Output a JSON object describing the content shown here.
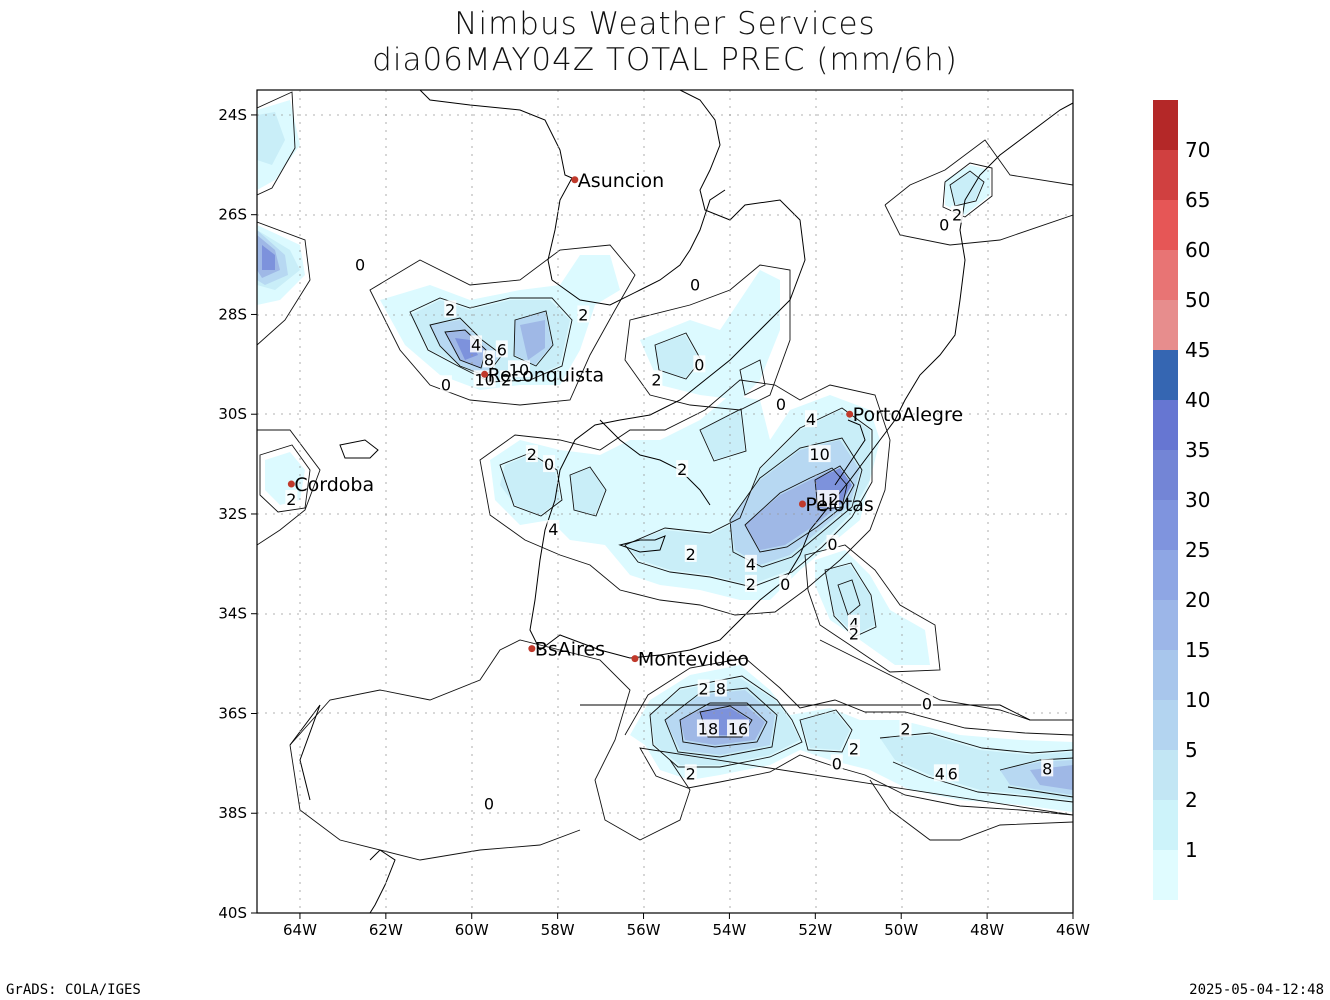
{
  "title": {
    "line1": "Nimbus Weather Services",
    "line2": "dia06MAY04Z TOTAL PREC (mm/6h)"
  },
  "footer": {
    "left": "GrADS: COLA/IGES",
    "right": "2025-05-04-12:48"
  },
  "map": {
    "lon_range": [
      -65,
      -46
    ],
    "lat_range": [
      -40,
      -23.5
    ],
    "lat_ticks": [
      "24S",
      "26S",
      "28S",
      "30S",
      "32S",
      "34S",
      "36S",
      "38S",
      "40S"
    ],
    "lon_ticks": [
      "64W",
      "62W",
      "60W",
      "58W",
      "56W",
      "54W",
      "52W",
      "50W",
      "48W",
      "46W"
    ],
    "grid": "dotted"
  },
  "cities": [
    {
      "name": "Asuncion",
      "lon": -57.6,
      "lat": -25.3
    },
    {
      "name": "Reconquista",
      "lon": -59.7,
      "lat": -29.2
    },
    {
      "name": "PortoAlegre",
      "lon": -51.2,
      "lat": -30.0
    },
    {
      "name": "Cordoba",
      "lon": -64.2,
      "lat": -31.4
    },
    {
      "name": "Pelotas",
      "lon": -52.3,
      "lat": -31.8
    },
    {
      "name": "BsAires",
      "lon": -58.6,
      "lat": -34.7
    },
    {
      "name": "Montevideo",
      "lon": -56.2,
      "lat": -34.9
    }
  ],
  "contour_labels": [
    {
      "text": "0",
      "lon": -62.6,
      "lat": -27.0
    },
    {
      "text": "2",
      "lon": -60.5,
      "lat": -27.9
    },
    {
      "text": "4",
      "lon": -59.9,
      "lat": -28.6
    },
    {
      "text": "8",
      "lon": -59.6,
      "lat": -28.9
    },
    {
      "text": "6",
      "lon": -59.3,
      "lat": -28.7
    },
    {
      "text": "10",
      "lon": -59.7,
      "lat": -29.3
    },
    {
      "text": "0",
      "lon": -60.6,
      "lat": -29.4
    },
    {
      "text": "10",
      "lon": -58.9,
      "lat": -29.1
    },
    {
      "text": "2",
      "lon": -59.2,
      "lat": -29.3
    },
    {
      "text": "2",
      "lon": -57.4,
      "lat": -28.0
    },
    {
      "text": "0",
      "lon": -54.8,
      "lat": -27.4
    },
    {
      "text": "2",
      "lon": -55.7,
      "lat": -29.3
    },
    {
      "text": "0",
      "lon": -54.7,
      "lat": -29.0
    },
    {
      "text": "0",
      "lon": -52.8,
      "lat": -29.8
    },
    {
      "text": "4",
      "lon": -52.1,
      "lat": -30.1
    },
    {
      "text": "10",
      "lon": -51.9,
      "lat": -30.8
    },
    {
      "text": "12",
      "lon": -51.7,
      "lat": -31.7
    },
    {
      "text": "2",
      "lon": -58.6,
      "lat": -30.8
    },
    {
      "text": "0",
      "lon": -58.2,
      "lat": -31.0
    },
    {
      "text": "2",
      "lon": -55.1,
      "lat": -31.1
    },
    {
      "text": "4",
      "lon": -58.1,
      "lat": -32.3
    },
    {
      "text": "2",
      "lon": -64.2,
      "lat": -31.7
    },
    {
      "text": "2",
      "lon": -54.9,
      "lat": -32.8
    },
    {
      "text": "4",
      "lon": -53.5,
      "lat": -33.0
    },
    {
      "text": "2",
      "lon": -53.5,
      "lat": -33.4
    },
    {
      "text": "0",
      "lon": -52.7,
      "lat": -33.4
    },
    {
      "text": "0",
      "lon": -51.6,
      "lat": -32.6
    },
    {
      "text": "4",
      "lon": -51.1,
      "lat": -34.2
    },
    {
      "text": "2",
      "lon": -51.1,
      "lat": -34.4
    },
    {
      "text": "0",
      "lon": -49.4,
      "lat": -35.8
    },
    {
      "text": "2",
      "lon": -54.6,
      "lat": -35.5
    },
    {
      "text": "8",
      "lon": -54.2,
      "lat": -35.5
    },
    {
      "text": "18",
      "lon": -54.5,
      "lat": -36.3
    },
    {
      "text": "16",
      "lon": -53.8,
      "lat": -36.3
    },
    {
      "text": "2",
      "lon": -54.9,
      "lat": -37.2
    },
    {
      "text": "2",
      "lon": -51.1,
      "lat": -36.7
    },
    {
      "text": "0",
      "lon": -51.5,
      "lat": -37.0
    },
    {
      "text": "2",
      "lon": -49.9,
      "lat": -36.3
    },
    {
      "text": "4",
      "lon": -49.1,
      "lat": -37.2
    },
    {
      "text": "6",
      "lon": -48.8,
      "lat": -37.2
    },
    {
      "text": "8",
      "lon": -46.6,
      "lat": -37.1
    },
    {
      "text": "0",
      "lon": -59.6,
      "lat": -37.8
    },
    {
      "text": "0",
      "lon": -49.0,
      "lat": -26.2
    },
    {
      "text": "2",
      "lon": -48.7,
      "lat": -26.0
    }
  ],
  "colorbar": {
    "levels": [
      "1",
      "2",
      "5",
      "10",
      "15",
      "20",
      "25",
      "30",
      "35",
      "40",
      "45",
      "50",
      "60",
      "65",
      "70"
    ],
    "colors": [
      "#e0fcff",
      "#cdf3fa",
      "#c2e6f4",
      "#b3d4f0",
      "#a8c6ec",
      "#9cb6e8",
      "#8ea6e4",
      "#7f94de",
      "#7385d6",
      "#6676d2",
      "#3566b2",
      "#e78d8d",
      "#e87474",
      "#e65656",
      "#d04040",
      "#b42828"
    ]
  }
}
